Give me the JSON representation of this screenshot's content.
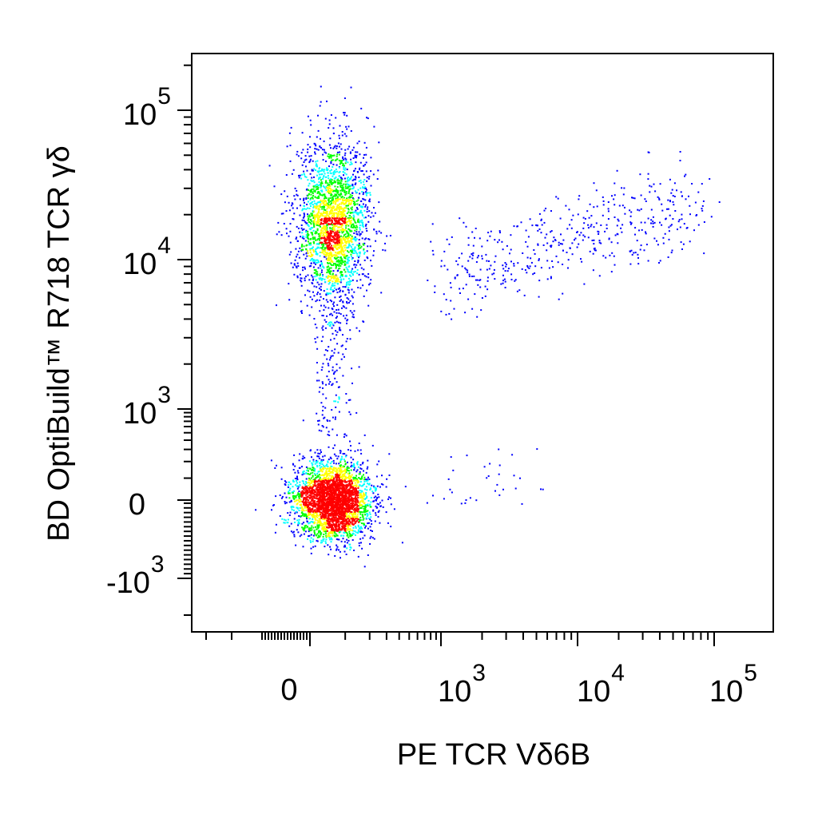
{
  "chart_data": {
    "type": "scatter",
    "style": "flow-cytometry pseudocolor density plot (biexponential axes)",
    "xlabel": "PE TCR Vδ6B",
    "ylabel": "BD OptiBuild™ R718  TCR γδ",
    "x_ticks": [
      {
        "value": 0,
        "base": "0",
        "exp": ""
      },
      {
        "value": 1000,
        "base": "10",
        "exp": "3"
      },
      {
        "value": 10000,
        "base": "10",
        "exp": "4"
      },
      {
        "value": 100000,
        "base": "10",
        "exp": "5"
      }
    ],
    "y_ticks": [
      {
        "value": -1000,
        "base": "-10",
        "exp": "3"
      },
      {
        "value": 0,
        "base": "0",
        "exp": ""
      },
      {
        "value": 1000,
        "base": "10",
        "exp": "3"
      },
      {
        "value": 10000,
        "base": "10",
        "exp": "4"
      },
      {
        "value": 100000,
        "base": "10",
        "exp": "5"
      }
    ],
    "xlim": [
      -300,
      262144
    ],
    "ylim": [
      -1800,
      262144
    ],
    "density_colors": [
      "#0000ff",
      "#00ffff",
      "#00ff00",
      "#ffff00",
      "#ff0000"
    ],
    "populations": [
      {
        "label": "",
        "x_center": 60,
        "y_center": 0,
        "events": 3200,
        "peak_color": "#ff0000"
      },
      {
        "label": "",
        "x_center": 60,
        "y_center": 18000,
        "events": 2300,
        "peak_color": "#00ffff"
      },
      {
        "label": "",
        "x_range": [
          1000,
          80000
        ],
        "y_range": [
          5000,
          60000
        ],
        "events": 480,
        "peak_color": "#0000ff"
      }
    ],
    "grid": false,
    "legend": "none"
  }
}
